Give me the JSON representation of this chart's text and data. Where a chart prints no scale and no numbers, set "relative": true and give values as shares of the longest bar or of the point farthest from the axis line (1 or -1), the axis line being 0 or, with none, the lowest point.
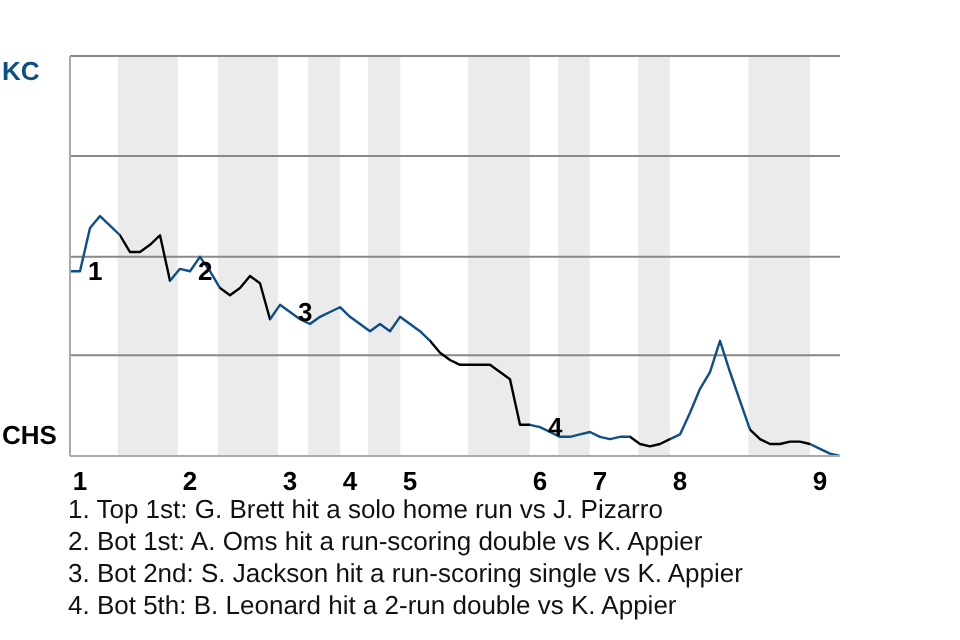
{
  "chart_data": {
    "type": "line",
    "relative": true,
    "categories": [
      null,
      "1",
      null,
      null,
      null,
      null,
      null,
      null,
      null,
      null,
      null,
      null,
      "2",
      null,
      null,
      null,
      null,
      null,
      null,
      null,
      null,
      null,
      "3",
      null,
      null,
      null,
      null,
      null,
      "4",
      null,
      null,
      null,
      null,
      null,
      "5",
      null,
      null,
      null,
      null,
      null,
      null,
      null,
      null,
      null,
      null,
      null,
      null,
      "6",
      null,
      null,
      null,
      null,
      null,
      "7",
      null,
      null,
      null,
      null,
      null,
      null,
      null,
      "8",
      null,
      null,
      null,
      null,
      null,
      null,
      null,
      null,
      null,
      null,
      null,
      null,
      null,
      "9",
      null,
      null
    ],
    "series": [
      {
        "values": [
          0.77,
          0.77,
          0.95,
          1,
          0.96,
          0.92,
          0.85,
          0.85,
          0.88,
          0.92,
          0.73,
          0.78,
          0.77,
          0.83,
          0.77,
          0.7,
          0.67,
          0.7,
          0.75,
          0.72,
          0.57,
          0.63,
          0.6,
          0.57,
          0.55,
          0.58,
          0.6,
          0.62,
          0.58,
          0.55,
          0.52,
          0.55,
          0.52,
          0.58,
          0.55,
          0.52,
          0.48,
          0.43,
          0.4,
          0.38,
          0.38,
          0.38,
          0.38,
          0.35,
          0.32,
          0.13,
          0.13,
          0.12,
          0.1,
          0.08,
          0.08,
          0.09,
          0.1,
          0.08,
          0.07,
          0.08,
          0.08,
          0.05,
          0.04,
          0.05,
          0.07,
          0.09,
          0.18,
          0.28,
          0.35,
          0.48,
          0.35,
          0.23,
          0.11,
          0.07,
          0.05,
          0.05,
          0.06,
          0.06,
          0.05,
          0.03,
          0.01,
          0
        ],
        "colors": [
          "#0b4f8a",
          "#0b4f8a",
          "#0b4f8a",
          "#0b4f8a",
          "#0b4f8a",
          "#0b4f8a",
          "#000000",
          "#000000",
          "#000000",
          "#000000",
          "#000000",
          "#0b4f8a",
          "#0b4f8a",
          "#0b4f8a",
          "#0b4f8a",
          "#0b4f8a",
          "#000000",
          "#000000",
          "#000000",
          "#000000",
          "#000000",
          "#0b4f8a",
          "#0b4f8a",
          "#0b4f8a",
          "#0b4f8a",
          "#0b4f8a",
          "#0b4f8a",
          "#0b4f8a",
          "#0b4f8a",
          "#0b4f8a",
          "#0b4f8a",
          "#0b4f8a",
          "#0b4f8a",
          "#0b4f8a",
          "#0b4f8a",
          "#0b4f8a",
          "#0b4f8a",
          "#000000",
          "#000000",
          "#000000",
          "#000000",
          "#000000",
          "#000000",
          "#000000",
          "#000000",
          "#000000",
          "#000000",
          "#0b4f8a",
          "#0b4f8a",
          "#0b4f8a",
          "#0b4f8a",
          "#0b4f8a",
          "#0b4f8a",
          "#0b4f8a",
          "#0b4f8a",
          "#0b4f8a",
          "#0b4f8a",
          "#000000",
          "#000000",
          "#000000",
          "#000000",
          "#0b4f8a",
          "#0b4f8a",
          "#0b4f8a",
          "#0b4f8a",
          "#0b4f8a",
          "#0b4f8a",
          "#0b4f8a",
          "#0b4f8a",
          "#000000",
          "#000000",
          "#000000",
          "#000000",
          "#000000",
          "#000000",
          "#0b4f8a",
          "#0b4f8a",
          "#0b4f8a"
        ]
      }
    ],
    "ref_lines": [
      {
        "axis": "y",
        "value": 0.42,
        "color": "#888888"
      },
      {
        "axis": "y",
        "value": 0.83,
        "color": "#888888"
      },
      {
        "axis": "y",
        "value": 1.25,
        "color": "#888888"
      }
    ],
    "annotations": [
      "KC",
      "CHS",
      {
        "text": "1",
        "x": "1",
        "y": 0.77
      },
      {
        "text": "2",
        "x": "2",
        "y": 0.77
      },
      {
        "text": "3",
        "x": "3",
        "y": 0.6
      },
      {
        "text": "4",
        "x": "6",
        "y": 0.12
      },
      "1. Top 1st: G. Brett hit a solo home run vs J. Pizarro",
      "2. Bot 1st: A. Oms hit a run-scoring double vs K. Appier",
      "3. Bot 2nd: S. Jackson hit a run-scoring single vs K. Appier",
      "4. Bot 5th: B. Leonard hit a 2-run double vs K. Appier"
    ]
  }
}
